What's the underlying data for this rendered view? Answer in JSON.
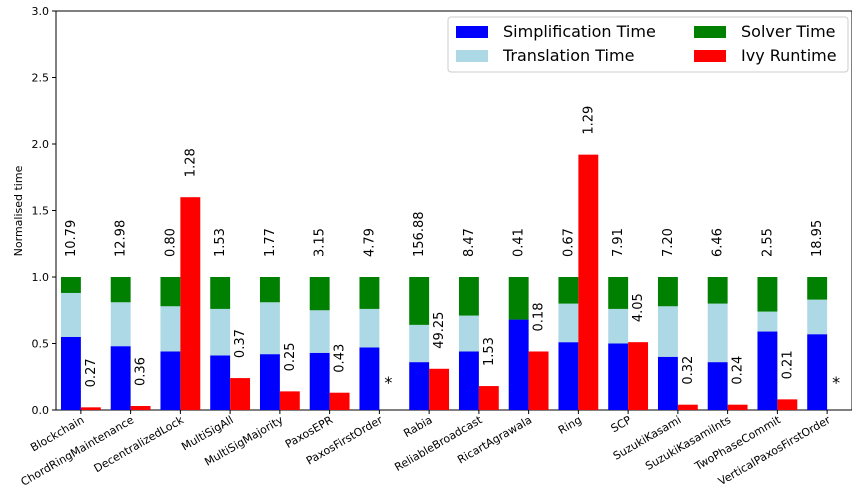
{
  "chart_data": {
    "type": "bar",
    "title": "",
    "xlabel": "",
    "ylabel": "Normalised time",
    "ylim": [
      0,
      3.0
    ],
    "yticks": [
      "0.0",
      "0.5",
      "1.0",
      "1.5",
      "2.0",
      "2.5",
      "3.0"
    ],
    "legend_position": "top-right",
    "legend": [
      {
        "name": "Simplification Time",
        "color": "#0000ff"
      },
      {
        "name": "Translation Time",
        "color": "#add8e6"
      },
      {
        "name": "Solver Time",
        "color": "#008000"
      },
      {
        "name": "Ivy Runtime",
        "color": "#ff0000"
      }
    ],
    "categories": [
      "Blockchain",
      "ChordRingMaintenance",
      "DecentralizedLock",
      "MultiSigAll",
      "MultiSigMajority",
      "PaxosEPR",
      "PaxosFirstOrder",
      "Rabia",
      "ReliableBroadcast",
      "RicartAgrawala",
      "Ring",
      "SCP",
      "SuzukiKasami",
      "SuzukiKasamiInts",
      "TwoPhaseCommit",
      "VerticalPaxosFirstOrder"
    ],
    "series": [
      {
        "name": "Simplification Time",
        "values": [
          0.55,
          0.48,
          0.44,
          0.41,
          0.42,
          0.43,
          0.47,
          0.36,
          0.44,
          0.68,
          0.51,
          0.5,
          0.4,
          0.36,
          0.59,
          0.57
        ]
      },
      {
        "name": "Translation Time",
        "values": [
          0.33,
          0.33,
          0.34,
          0.35,
          0.39,
          0.32,
          0.29,
          0.28,
          0.27,
          0.0,
          0.29,
          0.26,
          0.38,
          0.44,
          0.15,
          0.26
        ]
      },
      {
        "name": "Solver Time",
        "values": [
          0.12,
          0.19,
          0.22,
          0.24,
          0.19,
          0.25,
          0.24,
          0.36,
          0.29,
          0.32,
          0.2,
          0.24,
          0.22,
          0.2,
          0.26,
          0.17
        ]
      },
      {
        "name": "Ivy Runtime",
        "values": [
          0.02,
          0.03,
          1.6,
          0.24,
          0.14,
          0.13,
          0.0,
          0.31,
          0.18,
          0.44,
          1.92,
          0.51,
          0.04,
          0.04,
          0.08,
          0.0
        ]
      }
    ],
    "stack_labels": [
      "10.79",
      "12.98",
      "0.80",
      "1.53",
      "1.77",
      "3.15",
      "4.79",
      "156.88",
      "8.47",
      "0.41",
      "0.67",
      "7.91",
      "7.20",
      "6.46",
      "2.55",
      "18.95"
    ],
    "ivy_labels": [
      "0.27",
      "0.36",
      "1.28",
      "0.37",
      "0.25",
      "0.43",
      "*",
      "49.25",
      "1.53",
      "0.18",
      "1.29",
      "4.05",
      "0.32",
      "0.24",
      "0.21",
      "*"
    ]
  }
}
